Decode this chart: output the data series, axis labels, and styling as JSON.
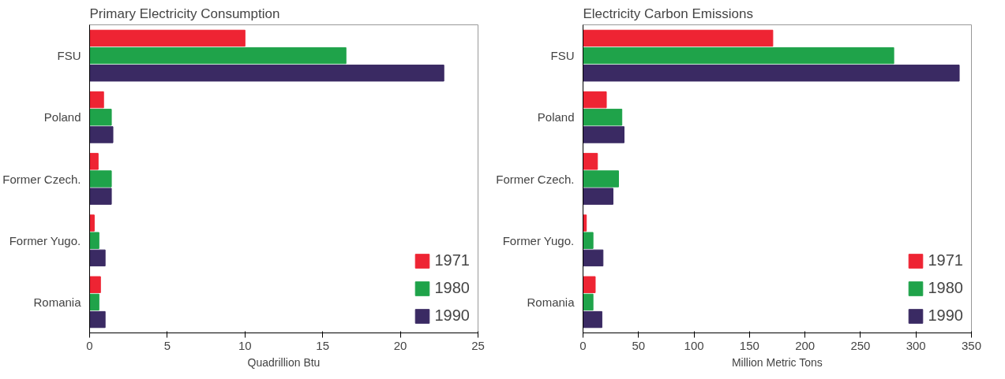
{
  "chart_data": [
    {
      "type": "bar",
      "orientation": "horizontal",
      "title": "Primary Electricity Consumption",
      "xlabel": "Quadrillion Btu",
      "categories": [
        "FSU",
        "Poland",
        "Former Czech.",
        "Former Yugo.",
        "Romania"
      ],
      "xlim": [
        0,
        25
      ],
      "xticks": [
        0,
        5,
        10,
        15,
        20,
        25
      ],
      "grid": false,
      "legend": "bottom right",
      "series": [
        {
          "name": "1971",
          "color": "#ee2433",
          "values": [
            10.0,
            0.9,
            0.55,
            0.3,
            0.7
          ]
        },
        {
          "name": "1980",
          "color": "#1fa34a",
          "values": [
            16.5,
            1.4,
            1.4,
            0.6,
            0.6
          ]
        },
        {
          "name": "1990",
          "color": "#3a2a63",
          "values": [
            22.8,
            1.5,
            1.4,
            1.0,
            1.0
          ]
        }
      ]
    },
    {
      "type": "bar",
      "orientation": "horizontal",
      "title": "Electricity Carbon Emissions",
      "xlabel": "Million Metric Tons",
      "categories": [
        "FSU",
        "Poland",
        "Former Czech.",
        "Former Yugo.",
        "Romania"
      ],
      "xlim": [
        0,
        350
      ],
      "xticks": [
        0,
        50,
        100,
        150,
        200,
        250,
        300,
        350
      ],
      "grid": false,
      "legend": "bottom right",
      "series": [
        {
          "name": "1971",
          "color": "#ee2433",
          "values": [
            171,
            21,
            13,
            3,
            11
          ]
        },
        {
          "name": "1980",
          "color": "#1fa34a",
          "values": [
            280,
            35,
            32,
            9,
            9
          ]
        },
        {
          "name": "1990",
          "color": "#3a2a63",
          "values": [
            339,
            37,
            27,
            18,
            17
          ]
        }
      ]
    }
  ]
}
